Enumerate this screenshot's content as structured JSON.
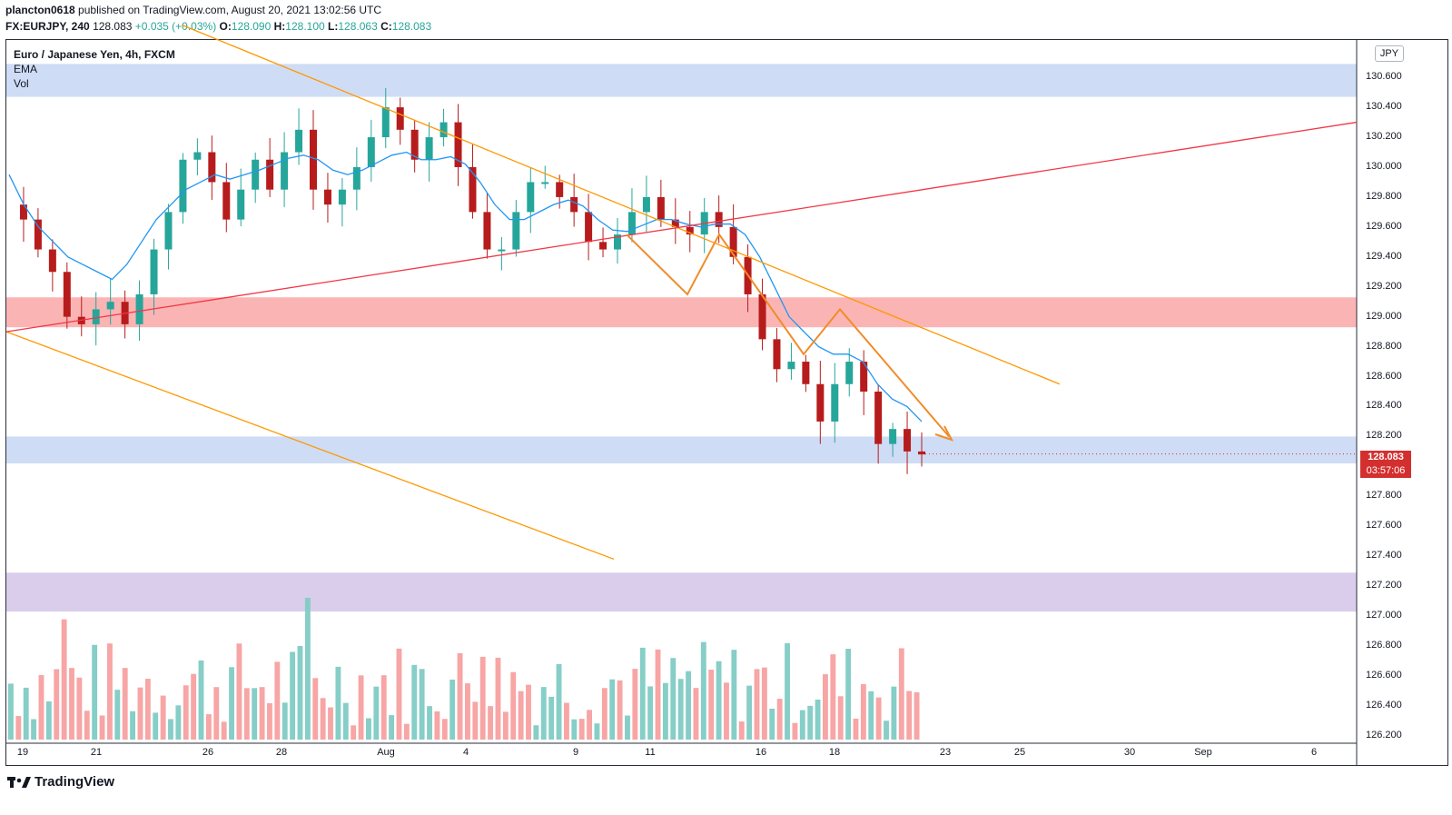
{
  "header": {
    "author": "plancton0618",
    "published_text": "published on TradingView.com, August 20, 2021 13:02:56 UTC",
    "symbol": "FX:EURJPY, 240",
    "last": "128.083",
    "change": "+0.035 (+0.03%)",
    "o_label": "O:",
    "o_value": "128.090",
    "h_label": "H:",
    "h_value": "128.100",
    "l_label": "L:",
    "l_value": "128.063",
    "c_label": "C:",
    "c_value": "128.083"
  },
  "legend": {
    "title": "Euro / Japanese Yen, 4h, FXCM",
    "ema_label": "EMA",
    "vol_label": "Vol"
  },
  "currency_badge": "JPY",
  "price_tag": {
    "price": "128.083",
    "countdown": "03:57:06"
  },
  "brand": "TradingView",
  "colors": {
    "up": "#26a69a",
    "down": "#b71c1c",
    "ema": "#2196f3",
    "trend": "#ff9800",
    "rising": "#f23645",
    "zone_blue": "#cfdcf5",
    "zone_red": "#fbb4b4",
    "zone_purple": "#d9cdeb"
  },
  "chart_data": {
    "type": "candlestick",
    "title": "Euro / Japanese Yen, 4h, FXCM",
    "ylim": [
      126.15,
      130.85
    ],
    "y_ticks": [
      "130.600",
      "130.400",
      "130.200",
      "130.000",
      "129.800",
      "129.600",
      "129.400",
      "129.200",
      "129.000",
      "128.800",
      "128.600",
      "128.400",
      "128.200",
      "128.000",
      "127.800",
      "127.600",
      "127.400",
      "127.200",
      "127.000",
      "126.800",
      "126.600",
      "126.400",
      "126.200"
    ],
    "x_ticks": [
      "19",
      "21",
      "26",
      "28",
      "Aug",
      "4",
      "9",
      "11",
      "16",
      "18",
      "23",
      "25",
      "30",
      "Sep",
      "6"
    ],
    "price_path": [
      129.75,
      129.65,
      129.45,
      129.3,
      129.0,
      128.95,
      129.05,
      129.1,
      128.95,
      129.15,
      129.45,
      129.7,
      130.05,
      130.1,
      129.9,
      129.65,
      129.85,
      130.05,
      129.85,
      130.1,
      130.25,
      129.85,
      129.75,
      129.85,
      130.0,
      130.2,
      130.4,
      130.25,
      130.05,
      130.2,
      130.3,
      130.0,
      129.7,
      129.45,
      129.45,
      129.7,
      129.9,
      129.9,
      129.8,
      129.7,
      129.5,
      129.45,
      129.55,
      129.7,
      129.8,
      129.65,
      129.6,
      129.55,
      129.7,
      129.6,
      129.4,
      129.15,
      128.85,
      128.65,
      128.7,
      128.55,
      128.3,
      128.55,
      128.7,
      128.5,
      128.15,
      128.25,
      128.1,
      128.08
    ],
    "ema_path": [
      129.95,
      129.75,
      129.6,
      129.5,
      129.4,
      129.35,
      129.3,
      129.25,
      129.35,
      129.5,
      129.65,
      129.75,
      129.85,
      129.9,
      129.95,
      129.92,
      129.95,
      129.98,
      130.02,
      130.06,
      130.08,
      130.05,
      129.98,
      129.95,
      129.98,
      130.03,
      130.08,
      130.1,
      130.05,
      130.05,
      130.07,
      130.02,
      129.9,
      129.75,
      129.65,
      129.65,
      129.7,
      129.75,
      129.78,
      129.74,
      129.65,
      129.58,
      129.57,
      129.61,
      129.65,
      129.65,
      129.62,
      129.6,
      129.62,
      129.62,
      129.55,
      129.4,
      129.2,
      129.0,
      128.9,
      128.8,
      128.75,
      128.75,
      128.7,
      128.55,
      128.45,
      128.4,
      128.3
    ],
    "zones": [
      {
        "name": "resistance-blue",
        "from": 130.47,
        "to": 130.69
      },
      {
        "name": "resistance-red",
        "from": 128.93,
        "to": 129.13
      },
      {
        "name": "support-blue",
        "from": 128.02,
        "to": 128.2
      }
    ],
    "volume_zone": {
      "from": 127.03,
      "to": 127.29
    },
    "trendlines": [
      {
        "name": "upper-descending",
        "color": "orange",
        "from": [
          0.13,
          130.95
        ],
        "to": [
          0.78,
          128.55
        ]
      },
      {
        "name": "lower-descending",
        "color": "orange",
        "from": [
          0.0,
          128.9
        ],
        "to": [
          0.45,
          127.38
        ]
      },
      {
        "name": "rising",
        "color": "red",
        "from": [
          0.0,
          128.9
        ],
        "to": [
          1.0,
          130.3
        ]
      }
    ],
    "projection_path": [
      [
        129.55
      ],
      [
        129.15
      ],
      [
        129.55
      ],
      [
        128.75
      ],
      [
        129.05
      ],
      [
        128.2
      ]
    ],
    "last_price": 128.083
  }
}
